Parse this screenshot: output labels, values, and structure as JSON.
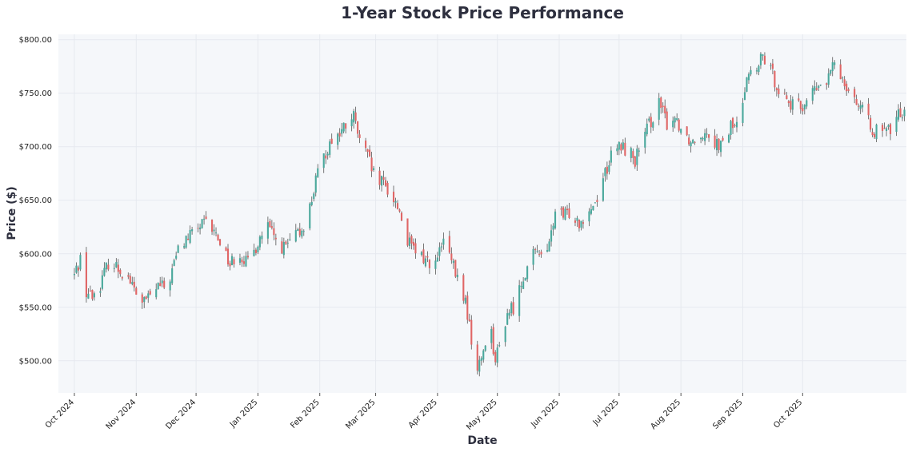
{
  "chart_data": {
    "type": "candlestick",
    "title": "1-Year Stock Price Performance",
    "xlabel": "Date",
    "ylabel": "Price ($)",
    "ylim": [
      470,
      805
    ],
    "xlim": [
      "2024-09-23",
      "2025-11-22"
    ],
    "grid": true,
    "colors": {
      "up": "#4aa89c",
      "down": "#e06666",
      "wick": "#555555",
      "plot_bg": "#f5f7fa",
      "grid": "#e6e9ef"
    },
    "y_ticks": [
      {
        "value": 500,
        "label": "$500.00"
      },
      {
        "value": 550,
        "label": "$550.00"
      },
      {
        "value": 600,
        "label": "$600.00"
      },
      {
        "value": 650,
        "label": "$650.00"
      },
      {
        "value": 700,
        "label": "$700.00"
      },
      {
        "value": 750,
        "label": "$750.00"
      },
      {
        "value": 800,
        "label": "$800.00"
      }
    ],
    "x_ticks": [
      {
        "date": "2024-10-01",
        "label": "Oct 2024"
      },
      {
        "date": "2024-11-01",
        "label": "Nov 2024"
      },
      {
        "date": "2024-12-01",
        "label": "Dec 2024"
      },
      {
        "date": "2025-01-01",
        "label": "Jan 2025"
      },
      {
        "date": "2025-02-01",
        "label": "Feb 2025"
      },
      {
        "date": "2025-03-01",
        "label": "Mar 2025"
      },
      {
        "date": "2025-04-01",
        "label": "Apr 2025"
      },
      {
        "date": "2025-05-01",
        "label": "May 2025"
      },
      {
        "date": "2025-06-01",
        "label": "Jun 2025"
      },
      {
        "date": "2025-07-01",
        "label": "Jul 2025"
      },
      {
        "date": "2025-08-01",
        "label": "Aug 2025"
      },
      {
        "date": "2025-09-01",
        "label": "Sep 2025"
      },
      {
        "date": "2025-10-01",
        "label": "Oct 2025"
      }
    ],
    "series": [
      {
        "type": "close_path",
        "points": [
          [
            "2024-10-01",
            580
          ],
          [
            "2024-10-04",
            596
          ],
          [
            "2024-10-07",
            565
          ],
          [
            "2024-10-10",
            560
          ],
          [
            "2024-10-14",
            572
          ],
          [
            "2024-10-18",
            592
          ],
          [
            "2024-10-22",
            588
          ],
          [
            "2024-10-28",
            578
          ],
          [
            "2024-11-01",
            562
          ],
          [
            "2024-11-05",
            555
          ],
          [
            "2024-11-08",
            560
          ],
          [
            "2024-11-12",
            570
          ],
          [
            "2024-11-15",
            568
          ],
          [
            "2024-11-18",
            578
          ],
          [
            "2024-11-22",
            604
          ],
          [
            "2024-11-26",
            613
          ],
          [
            "2024-12-02",
            625
          ],
          [
            "2024-12-06",
            628
          ],
          [
            "2024-12-10",
            620
          ],
          [
            "2024-12-14",
            610
          ],
          [
            "2024-12-18",
            590
          ],
          [
            "2024-12-22",
            603
          ],
          [
            "2024-12-27",
            590
          ],
          [
            "2025-01-02",
            615
          ],
          [
            "2025-01-06",
            625
          ],
          [
            "2025-01-10",
            612
          ],
          [
            "2025-01-14",
            605
          ],
          [
            "2025-01-18",
            612
          ],
          [
            "2025-01-22",
            620
          ],
          [
            "2025-01-26",
            635
          ],
          [
            "2025-01-30",
            668
          ],
          [
            "2025-02-03",
            690
          ],
          [
            "2025-02-07",
            708
          ],
          [
            "2025-02-11",
            712
          ],
          [
            "2025-02-15",
            722
          ],
          [
            "2025-02-18",
            728
          ],
          [
            "2025-02-21",
            705
          ],
          [
            "2025-02-25",
            690
          ],
          [
            "2025-03-01",
            668
          ],
          [
            "2025-03-05",
            665
          ],
          [
            "2025-03-09",
            655
          ],
          [
            "2025-03-13",
            640
          ],
          [
            "2025-03-17",
            612
          ],
          [
            "2025-03-21",
            600
          ],
          [
            "2025-03-26",
            595
          ],
          [
            "2025-03-31",
            590
          ],
          [
            "2025-04-04",
            612
          ],
          [
            "2025-04-08",
            592
          ],
          [
            "2025-04-12",
            570
          ],
          [
            "2025-04-15",
            555
          ],
          [
            "2025-04-18",
            520
          ],
          [
            "2025-04-21",
            490
          ],
          [
            "2025-04-24",
            510
          ],
          [
            "2025-04-27",
            540
          ],
          [
            "2025-04-30",
            500
          ],
          [
            "2025-05-03",
            520
          ],
          [
            "2025-05-06",
            545
          ],
          [
            "2025-05-10",
            552
          ],
          [
            "2025-05-14",
            580
          ],
          [
            "2025-05-18",
            595
          ],
          [
            "2025-05-22",
            605
          ],
          [
            "2025-05-26",
            598
          ],
          [
            "2025-05-30",
            640
          ],
          [
            "2025-06-03",
            634
          ],
          [
            "2025-06-07",
            640
          ],
          [
            "2025-06-11",
            630
          ],
          [
            "2025-06-15",
            640
          ],
          [
            "2025-06-19",
            648
          ],
          [
            "2025-06-23",
            672
          ],
          [
            "2025-06-27",
            690
          ],
          [
            "2025-07-01",
            700
          ],
          [
            "2025-07-05",
            698
          ],
          [
            "2025-07-09",
            688
          ],
          [
            "2025-07-13",
            705
          ],
          [
            "2025-07-17",
            725
          ],
          [
            "2025-07-21",
            740
          ],
          [
            "2025-07-25",
            722
          ],
          [
            "2025-07-29",
            728
          ],
          [
            "2025-08-02",
            715
          ],
          [
            "2025-08-06",
            705
          ],
          [
            "2025-08-10",
            712
          ],
          [
            "2025-08-14",
            716
          ],
          [
            "2025-08-18",
            705
          ],
          [
            "2025-08-22",
            700
          ],
          [
            "2025-08-26",
            720
          ],
          [
            "2025-08-30",
            718
          ],
          [
            "2025-09-03",
            770
          ],
          [
            "2025-09-07",
            765
          ],
          [
            "2025-09-11",
            785
          ],
          [
            "2025-09-15",
            770
          ],
          [
            "2025-09-19",
            755
          ],
          [
            "2025-09-23",
            745
          ],
          [
            "2025-09-27",
            735
          ],
          [
            "2025-10-01",
            738
          ],
          [
            "2025-10-05",
            750
          ],
          [
            "2025-10-09",
            755
          ],
          [
            "2025-10-13",
            760
          ],
          [
            "2025-10-17",
            778
          ],
          [
            "2025-10-21",
            765
          ],
          [
            "2025-10-25",
            752
          ],
          [
            "2025-10-29",
            740
          ],
          [
            "2025-11-02",
            725
          ],
          [
            "2025-11-06",
            715
          ],
          [
            "2025-11-10",
            712
          ],
          [
            "2025-11-14",
            716
          ],
          [
            "2025-11-18",
            730
          ],
          [
            "2025-11-22",
            738
          ]
        ]
      }
    ]
  }
}
